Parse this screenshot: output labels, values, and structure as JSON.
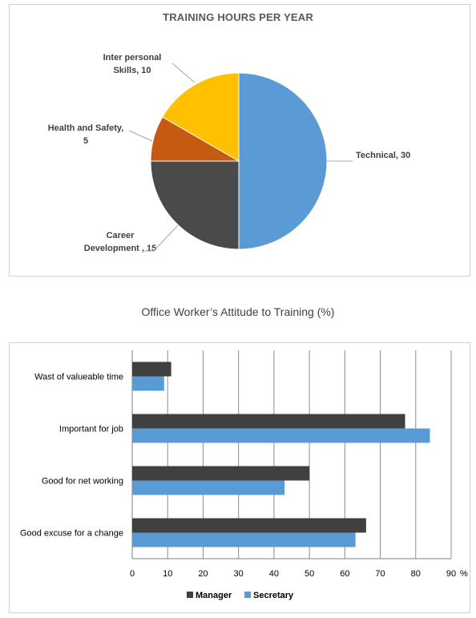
{
  "chart_data": [
    {
      "type": "pie",
      "title": "TRAINING HOURS PER YEAR",
      "categories": [
        "Technical",
        "Career Development",
        "Health and Safety",
        "Inter personal Skills"
      ],
      "values": [
        30,
        15,
        5,
        10
      ],
      "colors": [
        "#5b9bd5",
        "#4a4a4a",
        "#c55a11",
        "#ffc000"
      ],
      "data_labels": [
        [
          "Technical, 30"
        ],
        [
          "Career",
          "Development , 15"
        ],
        [
          "Health and Safety,",
          "5"
        ],
        [
          "Inter personal",
          "Skills, 10"
        ]
      ]
    },
    {
      "type": "bar",
      "orientation": "horizontal",
      "title": "Office Worker’s Attitude to Training (%)",
      "categories": [
        "Wast of valueable time",
        "Important for job",
        "Good for net working",
        "Good excuse for a change"
      ],
      "series": [
        {
          "name": "Manager",
          "color": "#404040",
          "values": [
            11,
            77,
            50,
            66
          ]
        },
        {
          "name": "Secretary",
          "color": "#5b9bd5",
          "values": [
            9,
            84,
            43,
            63
          ]
        }
      ],
      "xlim": [
        0,
        90
      ],
      "xticks": [
        "0",
        "10",
        "20",
        "30",
        "40",
        "50",
        "60",
        "70",
        "80",
        "90"
      ],
      "xunit": "%",
      "grid": true,
      "legend": "bottom"
    }
  ]
}
